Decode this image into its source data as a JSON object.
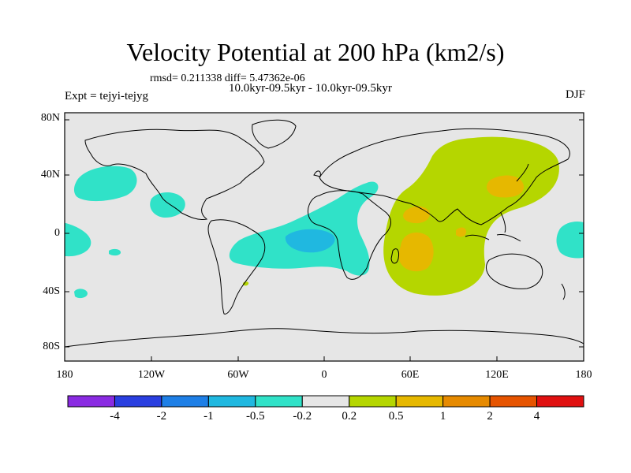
{
  "title": "Velocity Potential at 200 hPa (km2/s)",
  "subtitle": {
    "stats": "rmsd= 0.211338 diff= 5.47362e-06",
    "periods": "10.0kyr-09.5kyr - 10.0kyr-09.5kyr",
    "experiment": "Expt = tejyi-tejyg",
    "season": "DJF"
  },
  "axes": {
    "lat_labels": [
      "80N",
      "40N",
      "0",
      "40S",
      "80S"
    ],
    "lon_labels": [
      "180",
      "120W",
      "60W",
      "0",
      "60E",
      "120E",
      "180"
    ]
  },
  "colorbar": {
    "labels": [
      "-4",
      "-2",
      "-1",
      "-0.5",
      "-0.2",
      "0.2",
      "0.5",
      "1",
      "2",
      "4"
    ],
    "colors": [
      "#8a2be2",
      "#2a3fe0",
      "#1e7fe6",
      "#20b8e0",
      "#30e2c8",
      "#e6e6e6",
      "#b5d600",
      "#e6b800",
      "#e68a00",
      "#e65400",
      "#e01010"
    ]
  },
  "colors": {
    "ocean_land_bg": "#e6e6e6",
    "neg_fill": "#30e2c8",
    "neg_strong_fill": "#20b8e0",
    "pos_fill": "#b5d600",
    "pos_strong_fill": "#e6b800"
  },
  "chart_data": {
    "type": "heatmap",
    "variable": "Velocity Potential at 200 hPa",
    "units": "km2/s",
    "projection": "cylindrical equidistant",
    "lon_range": [
      -180,
      180
    ],
    "lat_range": [
      -90,
      90
    ],
    "contour_levels": [
      -4,
      -2,
      -1,
      -0.5,
      -0.2,
      0.2,
      0.5,
      1,
      2,
      4
    ],
    "regions": [
      {
        "name": "positive anomaly (Indian Ocean / East Asia)",
        "range": "0.2 to 0.5",
        "lon_center": 70,
        "lat_center": 10
      },
      {
        "name": "local maximum (East Asia)",
        "range": "0.5 to 1",
        "lon_center": 128,
        "lat_center": 36
      },
      {
        "name": "local maximum (Arabian Sea)",
        "range": "0.5 to 1",
        "lon_center": 60,
        "lat_center": 16
      },
      {
        "name": "local maximum (SW Indian Ocean)",
        "range": "0.5 to 1",
        "lon_center": 58,
        "lat_center": -16
      },
      {
        "name": "negative anomaly (tropical Atlantic)",
        "range": "-0.5 to -0.2",
        "lon_center": -20,
        "lat_center": -2
      },
      {
        "name": "local minimum (tropical Atlantic)",
        "range": "-1 to -0.5",
        "lon_center": -12,
        "lat_center": -3
      },
      {
        "name": "negative anomaly (N Pacific)",
        "range": "-0.5 to -0.2",
        "lon_center": -150,
        "lat_center": 30
      },
      {
        "name": "negative anomaly (E Pacific)",
        "range": "-0.5 to -0.2",
        "lon_center": -115,
        "lat_center": 18
      },
      {
        "name": "negative anomaly (dateline equatorial)",
        "range": "-0.5 to -0.2",
        "lon_center": 172,
        "lat_center": -2
      },
      {
        "name": "negative anomaly (SW Pacific)",
        "range": "-0.5 to -0.2",
        "lon_center": -165,
        "lat_center": -45
      }
    ]
  }
}
